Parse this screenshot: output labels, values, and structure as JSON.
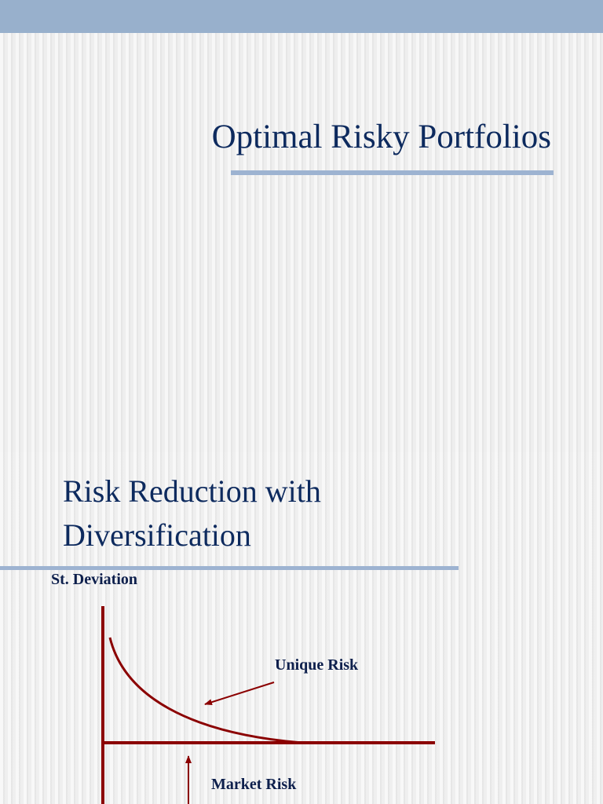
{
  "slide1": {
    "title": "Optimal Risky Portfolios"
  },
  "slide2": {
    "title_line1": "Risk Reduction with",
    "title_line2": "Diversification",
    "diagram": {
      "y_axis_label": "St. Deviation",
      "curve_label": "Unique Risk",
      "baseline_label": "Market Risk"
    }
  },
  "colors": {
    "title_text": "#0d2a5e",
    "accent_bar": "#98b0cc",
    "diagram_lines": "#8b0000",
    "label_text": "#0d1f4c"
  }
}
